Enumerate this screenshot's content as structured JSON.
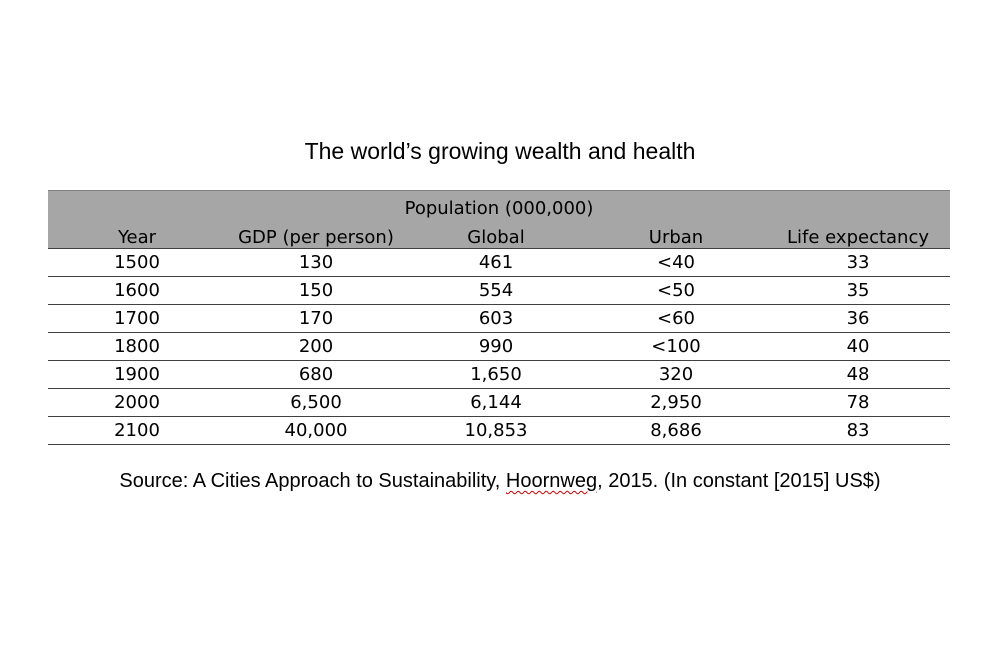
{
  "title": "The world’s growing wealth and health",
  "table": {
    "group_header": "Population (000,000)",
    "columns": [
      "Year",
      "GDP (per person)",
      "Global",
      "Urban",
      "Life expectancy"
    ],
    "rows": [
      [
        "1500",
        "130",
        "461",
        "<40",
        "33"
      ],
      [
        "1600",
        "150",
        "554",
        "<50",
        "35"
      ],
      [
        "1700",
        "170",
        "603",
        "<60",
        "36"
      ],
      [
        "1800",
        "200",
        "990",
        "<100",
        "40"
      ],
      [
        "1900",
        "680",
        "1,650",
        "320",
        "48"
      ],
      [
        "2000",
        "6,500",
        "6,144",
        "2,950",
        "78"
      ],
      [
        "2100",
        "40,000",
        "10,853",
        "8,686",
        "83"
      ]
    ]
  },
  "source": {
    "prefix": "Source: A Cities Approach to Sustainability, ",
    "author": "Hoornweg",
    "suffix": ", 2015. (In constant [2015] US$)"
  },
  "colors": {
    "header_bg": "#a6a6a6",
    "spellcheck_underline": "#d00000"
  }
}
